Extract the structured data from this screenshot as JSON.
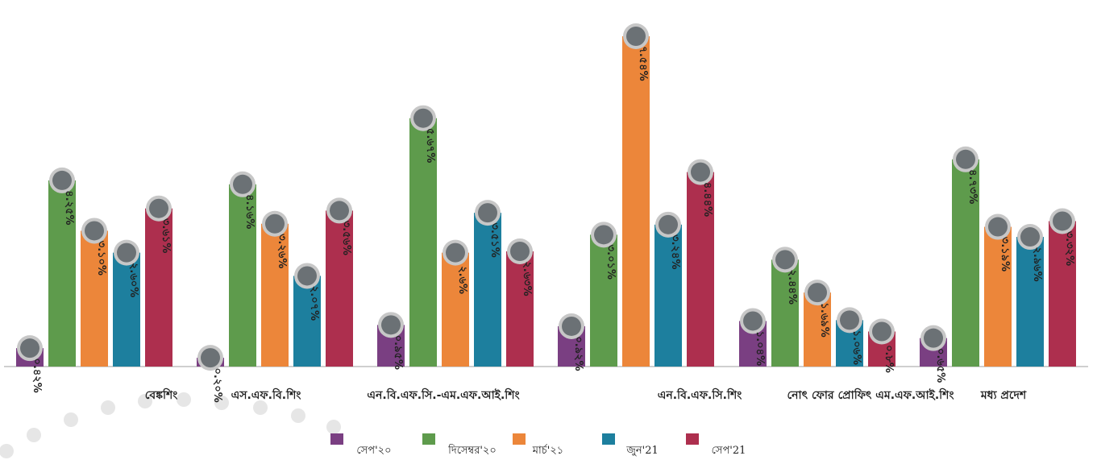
{
  "chart_data": {
    "type": "bar",
    "title": "",
    "xlabel": "",
    "ylabel": "",
    "ylim": [
      0,
      8
    ],
    "grid": false,
    "legend_position": "bottom",
    "categories": [
      "বেঙ্কশিং",
      "এস.এফ.বি.শিং",
      "এন.বি.এফ.সি.-এম.এফ.আই.শিং",
      "এন.বি.এফ.সি.শিং",
      "নোৎ ফোর প্রোফিৎ এম.এফ.আই.শিং",
      "মধ্য প্রদেশ"
    ],
    "series": [
      {
        "name": "সেপ'২০",
        "color": "#7a3f82",
        "values": [
          0.42,
          0.2,
          0.95,
          0.92,
          1.04,
          0.65
        ],
        "labels": [
          "০.৪২%",
          "০.২০%",
          "০.৯৫%",
          "০.৯২%",
          "১.০৪%",
          "০.৬৫%"
        ]
      },
      {
        "name": "দিসেম্বর'২০",
        "color": "#5e9b4c",
        "values": [
          4.25,
          4.16,
          5.67,
          3.01,
          2.44,
          4.73
        ],
        "labels": [
          "৪.২৫%",
          "৪.১৬%",
          "৫.৬৭%",
          "৩.০১%",
          "২.৪৪%",
          "৪.৭৩%"
        ]
      },
      {
        "name": "মার্চ'২১",
        "color": "#ec863a",
        "values": [
          3.1,
          3.26,
          2.6,
          7.54,
          1.69,
          3.19
        ],
        "labels": [
          "৩.১০%",
          "৩.২৬%",
          "২.৬%",
          "৭.৫৪%",
          "১.৬৯%",
          "৩.১৯%"
        ]
      },
      {
        "name": "জুন'21",
        "color": "#1d7f9e",
        "values": [
          2.6,
          2.07,
          3.51,
          3.24,
          1.06,
          2.96
        ],
        "labels": [
          "২.৬০%",
          "২.০৭%",
          "৩.৫১%",
          "৩.২৪%",
          "১.০৬%",
          "২.৯৬%"
        ]
      },
      {
        "name": "সেপ'21",
        "color": "#ad2f4e",
        "values": [
          3.61,
          3.56,
          2.63,
          4.44,
          0.8,
          3.32
        ],
        "labels": [
          "৩.৬১%",
          "৩.৫৬%",
          "২.৬৩%",
          "৪.৪৪%",
          "০.৮%",
          "৩.৩২%"
        ]
      }
    ]
  }
}
